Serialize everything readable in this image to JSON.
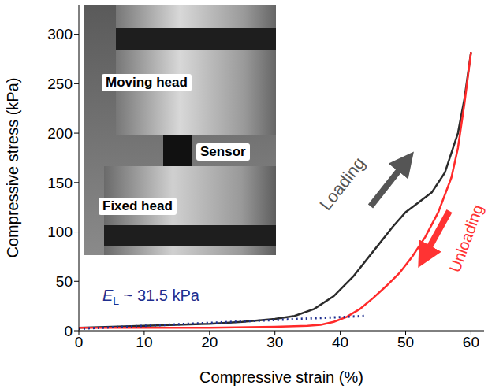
{
  "chart_data": {
    "type": "line",
    "x_label": "Compressive strain (%)",
    "y_label": "Compressive stress (kPa)",
    "xlim": [
      0,
      62
    ],
    "xticks": [
      0,
      10,
      20,
      30,
      40,
      50,
      60
    ],
    "ylim": [
      0,
      330
    ],
    "yticks": [
      0,
      50,
      100,
      150,
      200,
      250,
      300
    ],
    "grid": false,
    "series": [
      {
        "color": "#2b2b2b",
        "line_style": "solid",
        "x": [
          0,
          10,
          20,
          25,
          30,
          33,
          36,
          39,
          42,
          45,
          48,
          50,
          52,
          54,
          56,
          58,
          59,
          60
        ],
        "values": [
          3,
          5,
          7,
          9,
          12,
          15,
          22,
          35,
          55,
          80,
          105,
          120,
          130,
          140,
          160,
          200,
          235,
          282
        ]
      },
      {
        "color": "#ff2a2a",
        "line_style": "solid",
        "x": [
          60,
          59,
          58,
          57,
          55,
          53,
          51,
          49,
          47,
          45,
          43,
          41,
          39,
          37,
          35,
          30,
          20,
          10,
          0
        ],
        "values": [
          282,
          230,
          185,
          155,
          120,
          95,
          75,
          58,
          45,
          33,
          22,
          14,
          9,
          6,
          5,
          4,
          3,
          3,
          3
        ]
      },
      {
        "color": "#1f2f8f",
        "line_style": "dotted",
        "x": [
          0,
          44
        ],
        "values": [
          2,
          15
        ]
      }
    ],
    "annotations": [
      {
        "text": "Loading",
        "color": "#555555"
      },
      {
        "text": "Unloading",
        "color": "#ff3333"
      },
      {
        "text": "E",
        "subscript": "L",
        "suffix": " ~ 31.5 kPa",
        "color": "#1f2f8f"
      }
    ],
    "inset": {
      "labels": [
        "Moving head",
        "Sensor",
        "Fixed head"
      ]
    }
  }
}
